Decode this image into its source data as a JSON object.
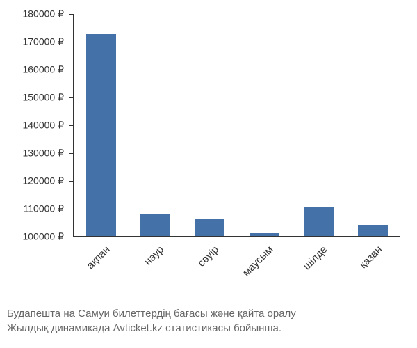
{
  "chart": {
    "type": "bar",
    "categories": [
      "ақпан",
      "наур",
      "сәуір",
      "маусым",
      "шілде",
      "қазан"
    ],
    "values": [
      172500,
      108000,
      106000,
      101000,
      110500,
      104000
    ],
    "bar_color": "#4472a8",
    "ylim": [
      100000,
      180000
    ],
    "ytick_step": 10000,
    "ytick_labels": [
      "100000 ₽",
      "110000 ₽",
      "120000 ₽",
      "130000 ₽",
      "140000 ₽",
      "150000 ₽",
      "160000 ₽",
      "170000 ₽",
      "180000 ₽"
    ],
    "background_color": "#ffffff",
    "axis_color": "#333333",
    "label_color": "#333333",
    "label_fontsize": 14,
    "bar_width": 0.55,
    "x_label_rotation": -45
  },
  "caption": {
    "line1": "Будапешта на Самуи билеттердің бағасы және қайта оралу",
    "line2": "Жылдық динамикада Avticket.kz статистикасы бойынша.",
    "color": "#666666",
    "fontsize": 15
  }
}
